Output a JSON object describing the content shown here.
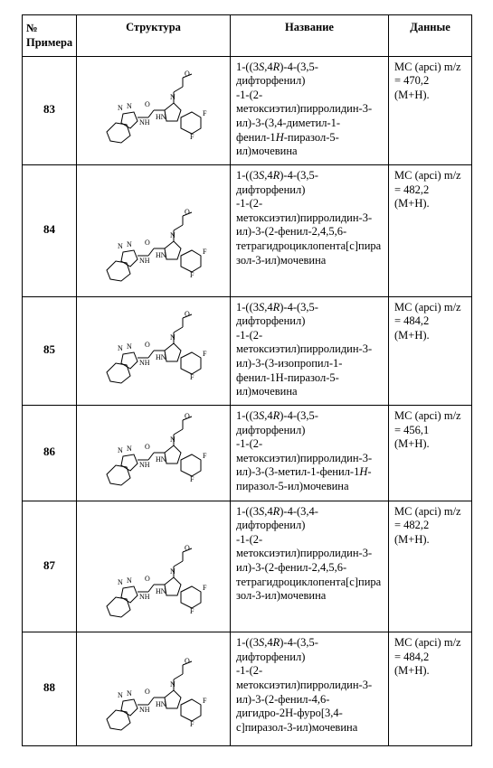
{
  "headers": {
    "num_line1": "№",
    "num_line2": "Примера",
    "structure": "Структура",
    "name": "Название",
    "data": "Данные"
  },
  "rows": [
    {
      "num": "83",
      "struct_height": "chem-sm",
      "name_html": "1-((3<i>S</i>,4<i>R</i>)-4-(3,5-дифторфенил)<br>-1-(2-метоксиэтил)пирролидин-3-ил)-3-(3,4-диметил-1-фенил-1<i>H</i>-пиразол-5-ил)мочевина",
      "data_html": "MC (apci) m/z = 470,2 (M+H)."
    },
    {
      "num": "84",
      "struct_height": "chem-lg",
      "name_html": "1-((3<i>S</i>,4<i>R</i>)-4-(3,5-дифторфенил)<br>-1-(2-метоксиэтил)пирролидин-3-ил)-3-(2-фенил-2,4,5,6-тетрагидроциклопента[с]пиразол-3-ил)мочевина",
      "data_html": "MC (apci) m/z = 482,2 (M+H)."
    },
    {
      "num": "85",
      "struct_height": "chem-sm",
      "name_html": "1-((3<i>S</i>,4<i>R</i>)-4-(3,5-дифторфенил)<br>-1-(2-метоксиэтил)пирролидин-3-ил)-3-(3-изопропил-1-фенил-1H-пиразол-5-ил)мочевина",
      "data_html": "MC (apci) m/z = 484,2 (M+H)."
    },
    {
      "num": "86",
      "struct_height": "chem-sm",
      "name_html": "1-((3<i>S</i>,4<i>R</i>)-4-(3,5-дифторфенил)<br>-1-(2-метоксиэтил)пирролидин-3-ил)-3-(3-метил-1-фенил-1<i>H</i>-пиразол-5-ил)мочевина",
      "data_html": "MC (apci) m/z = 456,1 (M+H)."
    },
    {
      "num": "87",
      "struct_height": "chem-lg",
      "name_html": "1-((3<i>S</i>,4<i>R</i>)-4-(3,4-дифторфенил)<br>-1-(2-метоксиэтил)пирролидин-3-ил)-3-(2-фенил-2,4,5,6-тетрагидроциклопента[с]пиразол-3-ил)мочевина",
      "data_html": "MC (apci) m/z = 482,2 (M+H)."
    },
    {
      "num": "88",
      "struct_height": "chem-md",
      "name_html": "1-((3<i>S</i>,4<i>R</i>)-4-(3,5-дифторфенил)<br>-1-(2-метоксиэтил)пирролидин-3-ил)-3-(2-фенил-4,6-дигидро-2H-фуро[3,4-с]пиразол-3-ил)мочевина",
      "data_html": "MC (apci) m/z = 484,2 (M+H)."
    }
  ]
}
